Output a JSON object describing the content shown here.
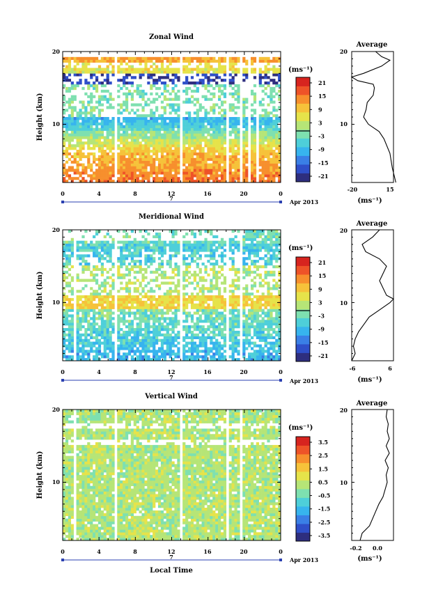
{
  "colors": [
    "#2e2e7e",
    "#2f4fc9",
    "#3a7fe6",
    "#37b4ee",
    "#4ecfd9",
    "#7ee0b0",
    "#b6e577",
    "#e6e34a",
    "#f6c23a",
    "#f78f2d",
    "#ee5328",
    "#d7241f"
  ],
  "panels": [
    {
      "title": "Zonal Wind",
      "ylabel": "Height (km)",
      "xticks": [
        "0",
        "4",
        "8",
        "12",
        "16",
        "20",
        "0"
      ],
      "yticks": [
        "20",
        "10"
      ],
      "date_tick": "7",
      "date_label": "Apr 2013",
      "unit": "(ms⁻¹)",
      "cbar_ticks": [
        "21",
        "15",
        "9",
        "3",
        "-3",
        "-9",
        "-15",
        "-21"
      ],
      "profile_title": "Average",
      "profile_xticks": [
        "-20",
        "15"
      ],
      "profile_yticks": [
        "20",
        "10"
      ],
      "profile_unit": "(ms⁻¹)"
    },
    {
      "title": "Meridional Wind",
      "ylabel": "Height (km)",
      "xticks": [
        "0",
        "4",
        "8",
        "12",
        "16",
        "20",
        "0"
      ],
      "yticks": [
        "20",
        "10"
      ],
      "date_tick": "7",
      "date_label": "Apr 2013",
      "unit": "(ms⁻¹)",
      "cbar_ticks": [
        "21",
        "15",
        "9",
        "3",
        "-3",
        "-9",
        "-15",
        "-21"
      ],
      "profile_title": "Average",
      "profile_xticks": [
        "-6",
        "6"
      ],
      "profile_yticks": [
        "20",
        "10"
      ],
      "profile_unit": "(ms⁻¹)"
    },
    {
      "title": "Vertical Wind",
      "ylabel": "Height (km)",
      "xticks": [
        "0",
        "4",
        "8",
        "12",
        "16",
        "20",
        "0"
      ],
      "yticks": [
        "20",
        "10"
      ],
      "date_tick": "7",
      "date_label": "Apr 2013",
      "unit": "(ms⁻¹)",
      "cbar_ticks": [
        "3.5",
        "2.5",
        "1.5",
        "0.5",
        "-0.5",
        "-1.5",
        "-2.5",
        "-3.5"
      ],
      "profile_title": "Average",
      "profile_xticks": [
        "-0.2",
        "0.0"
      ],
      "profile_yticks": [
        "20",
        "10"
      ],
      "profile_unit": "(ms⁻¹)"
    }
  ],
  "xlabel": "Local Time",
  "chart_data": [
    {
      "type": "heatmap",
      "title": "Zonal Wind",
      "xlabel": "Local Time",
      "ylabel": "Height (km)",
      "x_range": [
        0,
        24
      ],
      "y_range": [
        2,
        20
      ],
      "color_range": [
        -24,
        24
      ],
      "data_gaps_hours": [
        [
          5.7,
          6.0
        ],
        [
          13.0,
          13.3
        ],
        [
          17.9,
          18.3
        ],
        [
          19.4,
          19.7
        ],
        [
          20.5,
          20.7
        ],
        [
          21.4,
          21.7
        ]
      ],
      "height_profile": [
        [
          2,
          17
        ],
        [
          4,
          14
        ],
        [
          6,
          12
        ],
        [
          8,
          7
        ],
        [
          9,
          3
        ],
        [
          10,
          -6
        ],
        [
          11,
          -10
        ],
        [
          12,
          -8
        ],
        [
          13,
          -7
        ],
        [
          14,
          -2
        ],
        [
          15,
          -1
        ],
        [
          15.5,
          -2
        ],
        [
          16,
          -15
        ],
        [
          16.5,
          -20
        ],
        [
          17,
          -10
        ],
        [
          18,
          5
        ],
        [
          18.8,
          12
        ],
        [
          19.3,
          5
        ],
        [
          20,
          0
        ]
      ]
    },
    {
      "type": "heatmap",
      "title": "Meridional Wind",
      "xlabel": "Local Time",
      "ylabel": "Height (km)",
      "x_range": [
        0,
        24
      ],
      "y_range": [
        2,
        20
      ],
      "color_range": [
        -24,
        24
      ],
      "data_gaps_hours": [
        [
          1.2,
          1.4
        ],
        [
          5.7,
          6.0
        ],
        [
          13.0,
          13.3
        ],
        [
          17.9,
          18.3
        ],
        [
          19.4,
          19.7
        ]
      ],
      "height_profile": [
        [
          2,
          -6
        ],
        [
          3,
          -5
        ],
        [
          4,
          -5.5
        ],
        [
          5,
          -5
        ],
        [
          6,
          -4
        ],
        [
          7,
          -2.5
        ],
        [
          8,
          -1
        ],
        [
          9,
          2
        ],
        [
          10,
          5
        ],
        [
          10.5,
          6
        ],
        [
          11,
          4
        ],
        [
          12,
          3
        ],
        [
          13,
          2
        ],
        [
          14,
          3
        ],
        [
          15,
          4
        ],
        [
          16,
          2
        ],
        [
          17,
          -2
        ],
        [
          18,
          -3
        ],
        [
          19,
          0
        ],
        [
          20,
          2
        ]
      ]
    },
    {
      "type": "heatmap",
      "title": "Vertical Wind",
      "xlabel": "Local Time",
      "ylabel": "Height (km)",
      "x_range": [
        0,
        24
      ],
      "y_range": [
        2,
        20
      ],
      "color_range": [
        -4,
        4
      ],
      "data_gaps_hours": [
        [
          1.2,
          1.4
        ],
        [
          5.7,
          6.0
        ],
        [
          13.0,
          13.3
        ],
        [
          17.9,
          18.3
        ],
        [
          19.4,
          19.7
        ]
      ],
      "height_profile": [
        [
          2,
          -0.22
        ],
        [
          3,
          -0.2
        ],
        [
          4,
          -0.13
        ],
        [
          5,
          -0.1
        ],
        [
          6,
          -0.07
        ],
        [
          7,
          -0.04
        ],
        [
          8,
          0.0
        ],
        [
          9,
          0.02
        ],
        [
          10,
          0.04
        ],
        [
          11,
          0.03
        ],
        [
          12,
          0.05
        ],
        [
          13,
          0.02
        ],
        [
          14,
          0.06
        ],
        [
          15,
          0.03
        ],
        [
          16,
          0.06
        ],
        [
          17,
          0.04
        ],
        [
          18,
          0.05
        ],
        [
          19,
          0.03
        ],
        [
          20,
          0.04
        ]
      ]
    }
  ]
}
